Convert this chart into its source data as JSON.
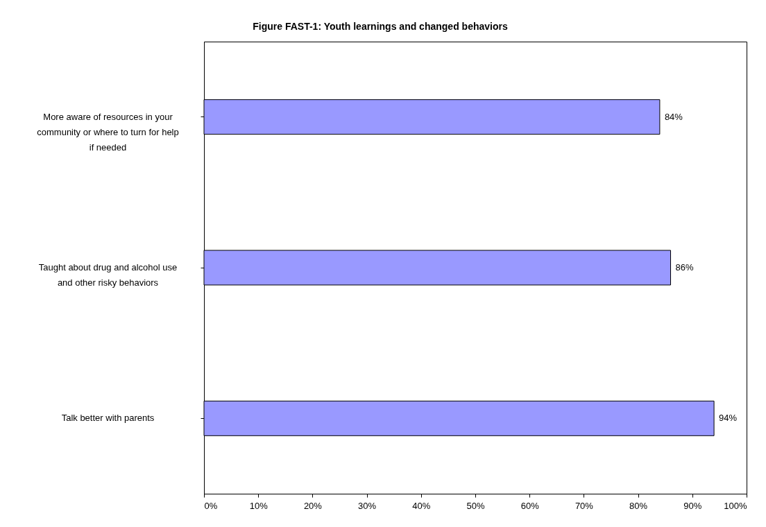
{
  "chart_data": {
    "type": "bar",
    "orientation": "horizontal",
    "title": "Figure FAST-1: Youth learnings and changed behaviors",
    "categories": [
      "More aware of resources in your community or where to turn for help if needed",
      "Taught about drug and alcohol use and other risky behaviors",
      "Talk better with parents"
    ],
    "values": [
      84,
      86,
      94
    ],
    "color": "#9999ff",
    "value_labels": [
      "84%",
      "86%",
      "94%"
    ],
    "xlim": [
      0,
      100
    ],
    "xticks": [
      {
        "value": 0,
        "label": "0%"
      },
      {
        "value": 10,
        "label": "10%"
      },
      {
        "value": 20,
        "label": "20%"
      },
      {
        "value": 30,
        "label": "30%"
      },
      {
        "value": 40,
        "label": "40%"
      },
      {
        "value": 50,
        "label": "50%"
      },
      {
        "value": 60,
        "label": "60%"
      },
      {
        "value": 70,
        "label": "70%"
      },
      {
        "value": 80,
        "label": "80%"
      },
      {
        "value": 90,
        "label": "90%"
      },
      {
        "value": 100,
        "label": "100%"
      }
    ],
    "grid": false
  }
}
